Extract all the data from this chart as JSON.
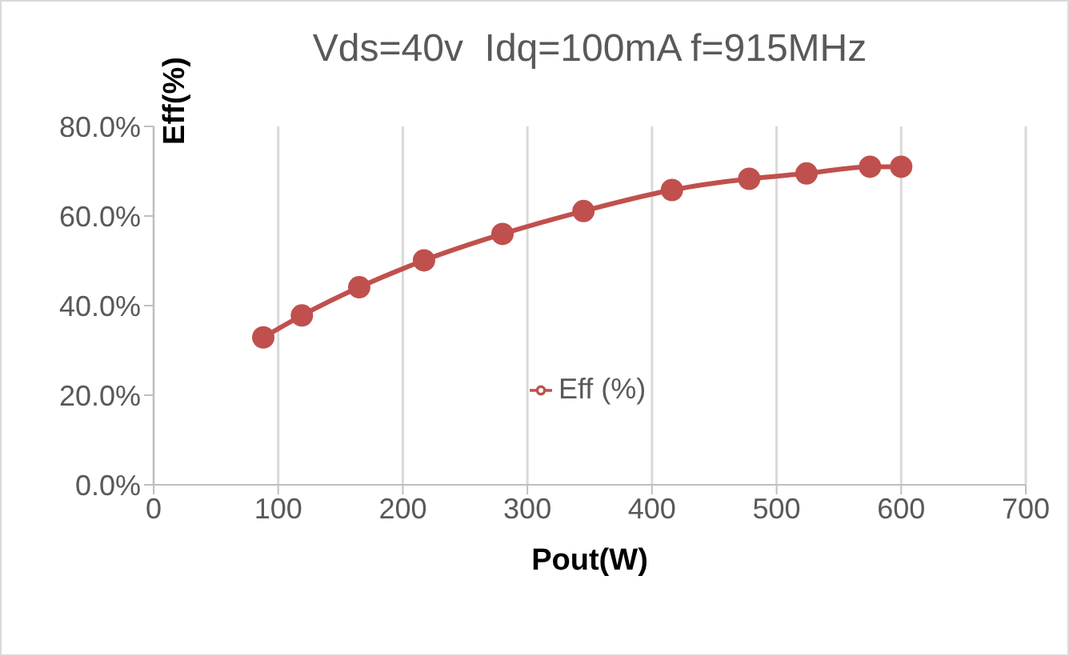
{
  "chart_data": {
    "type": "line",
    "title": "Vds=40v  Idq=100mA f=915MHz",
    "xlabel": "Pout(W)",
    "ylabel": "Eff(%)",
    "x": [
      88,
      119,
      165,
      217,
      280,
      345,
      416,
      478,
      524,
      575,
      600
    ],
    "series": [
      {
        "name": "Eff (%)",
        "color": "#c0504d",
        "values": [
          32.9,
          37.8,
          44.1,
          50.1,
          56.0,
          61.1,
          65.8,
          68.3,
          69.5,
          71.0,
          71.0
        ]
      }
    ],
    "xlim": [
      0,
      700
    ],
    "xticks": [
      0,
      100,
      200,
      300,
      400,
      500,
      600,
      700
    ],
    "ylim": [
      0,
      80
    ],
    "yticks": [
      {
        "value": 0,
        "label": "0.0%"
      },
      {
        "value": 20,
        "label": "20.0%"
      },
      {
        "value": 40,
        "label": "40.0%"
      },
      {
        "value": 60,
        "label": "60.0%"
      },
      {
        "value": 80,
        "label": "80.0%"
      }
    ],
    "grid": "x",
    "legend": "center",
    "marker": "circle",
    "line_style": "solid"
  }
}
